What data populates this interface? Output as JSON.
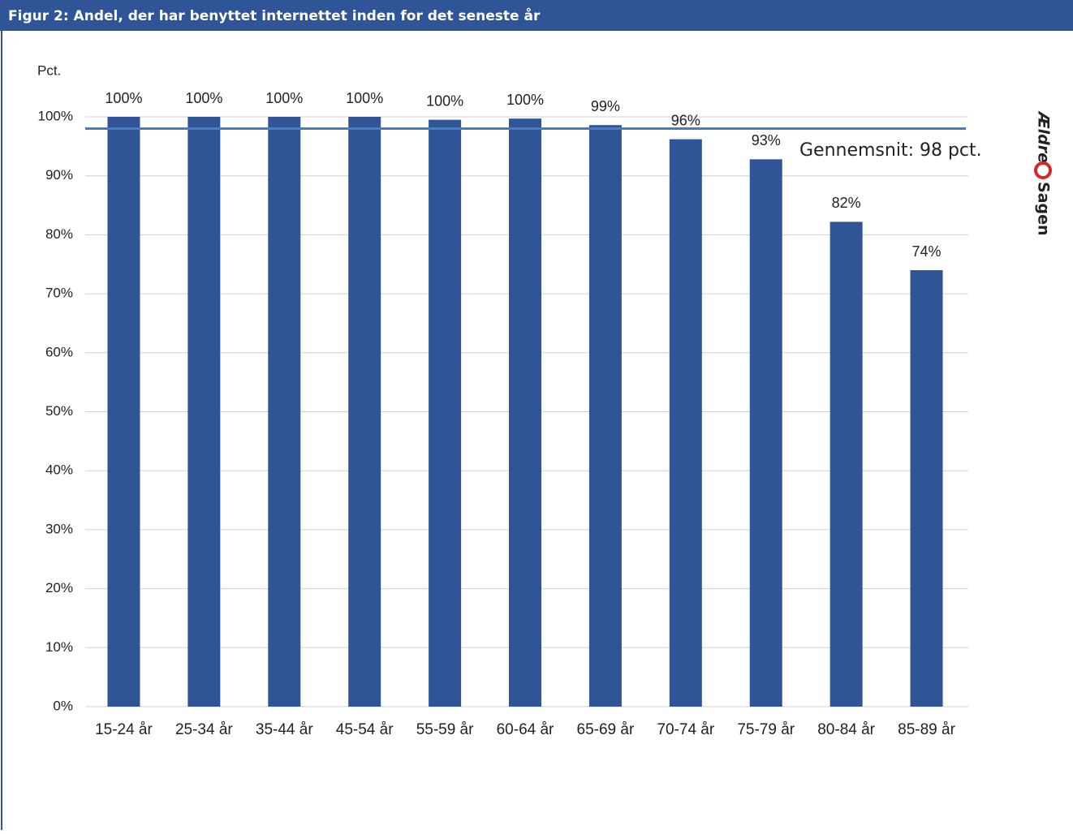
{
  "header": {
    "title": "Figur 2: Andel, der har benyttet internettet inden for det seneste år"
  },
  "logo": {
    "first": "Ældre",
    "second": "Sagen"
  },
  "chart_data": {
    "type": "bar",
    "y_label": "Pct.",
    "categories": [
      "15-24 år",
      "25-34 år",
      "35-44 år",
      "45-54 år",
      "55-59 år",
      "60-64 år",
      "65-69 år",
      "70-74 år",
      "75-79 år",
      "80-84 år",
      "85-89 år"
    ],
    "values": [
      100,
      100,
      100,
      100,
      99.5,
      99.7,
      98.6,
      96.2,
      92.8,
      82.2,
      74
    ],
    "value_labels": [
      "100%",
      "100%",
      "100%",
      "100%",
      "100%",
      "100%",
      "99%",
      "96%",
      "93%",
      "82%",
      "74%"
    ],
    "color": "#2f5597",
    "average": {
      "value": 98,
      "label": "Gennemsnit: 98 pct.",
      "color": "#4a7bc0"
    },
    "ylim": [
      0,
      100
    ],
    "yticks": [
      {
        "value": 0,
        "label": "0%"
      },
      {
        "value": 10,
        "label": "10%"
      },
      {
        "value": 20,
        "label": "20%"
      },
      {
        "value": 30,
        "label": "30%"
      },
      {
        "value": 40,
        "label": "40%"
      },
      {
        "value": 50,
        "label": "50%"
      },
      {
        "value": 60,
        "label": "60%"
      },
      {
        "value": 70,
        "label": "70%"
      },
      {
        "value": 80,
        "label": "80%"
      },
      {
        "value": 90,
        "label": "90%"
      },
      {
        "value": 100,
        "label": "100%"
      }
    ],
    "grid": true
  }
}
